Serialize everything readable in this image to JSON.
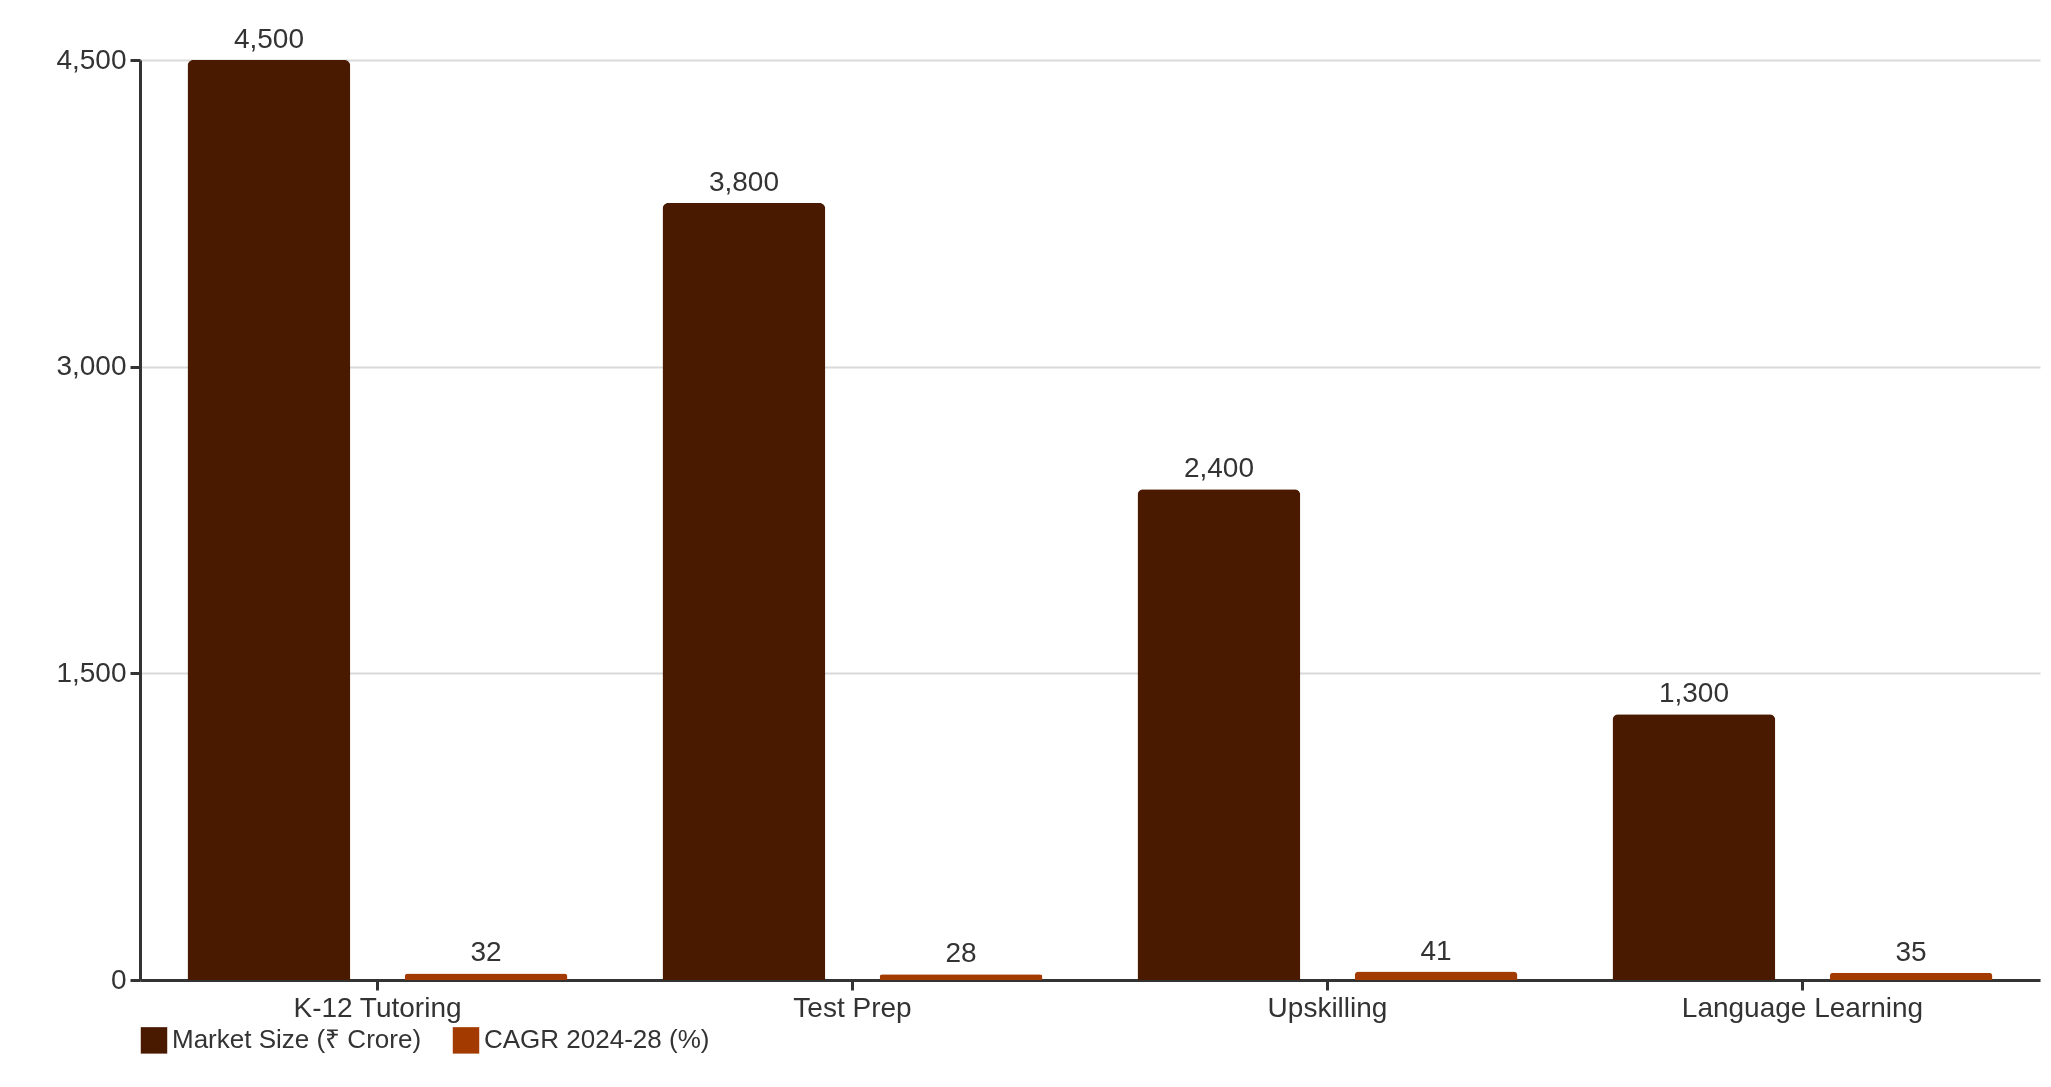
{
  "chart_data": {
    "type": "bar",
    "categories": [
      "K-12 Tutoring",
      "Test Prep",
      "Upskilling",
      "Language Learning"
    ],
    "series": [
      {
        "name": "Market Size (₹ Crore)",
        "color": "#4a1a00",
        "values": [
          4500,
          3800,
          2400,
          1300
        ],
        "value_labels": [
          "4,500",
          "3,800",
          "2,400",
          "1,300"
        ]
      },
      {
        "name": "CAGR 2024-28 (%)",
        "color": "#a33a00",
        "values": [
          32,
          28,
          41,
          35
        ],
        "value_labels": [
          "32",
          "28",
          "41",
          "35"
        ]
      }
    ],
    "ylim": [
      0,
      4500
    ],
    "yticks": [
      {
        "value": 0,
        "label": "0"
      },
      {
        "value": 1500,
        "label": "1,500"
      },
      {
        "value": 3000,
        "label": "3,000"
      },
      {
        "value": 4500,
        "label": "4,500"
      }
    ],
    "grid": "y",
    "legend": "bottom"
  }
}
